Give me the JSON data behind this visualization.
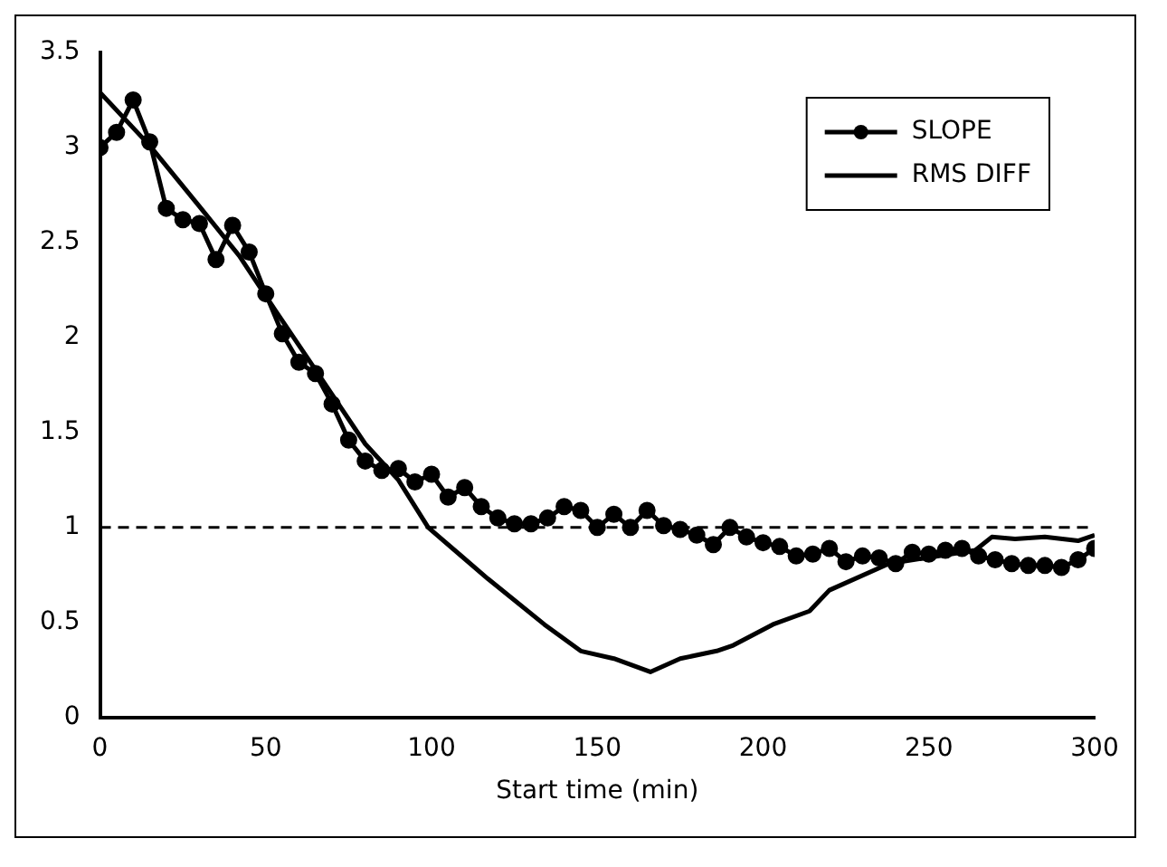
{
  "chart_data": {
    "type": "line",
    "xlabel": "Start time (min)",
    "xlim": [
      0,
      300
    ],
    "xticks": [
      0,
      50,
      100,
      150,
      200,
      250,
      300
    ],
    "ylim": [
      0,
      3.5
    ],
    "yticks": [
      0,
      0.5,
      1,
      1.5,
      2,
      2.5,
      3,
      3.5
    ],
    "grid": false,
    "legend": "top right",
    "series": [
      {
        "name": "SLOPE",
        "color": "#000000",
        "marker": "circle",
        "x": [
          0,
          5,
          10,
          15,
          20,
          25,
          30,
          35,
          40,
          45,
          50,
          55,
          60,
          65,
          70,
          75,
          80,
          85,
          90,
          95,
          100,
          105,
          110,
          115,
          120,
          125,
          130,
          135,
          140,
          145,
          150,
          155,
          160,
          165,
          170,
          175,
          180,
          185,
          190,
          195,
          200,
          205,
          210,
          215,
          220,
          225,
          230,
          235,
          240,
          245,
          250,
          255,
          260,
          265,
          270,
          275,
          280,
          285,
          290,
          295,
          300
        ],
        "values": [
          3.0,
          3.08,
          3.25,
          3.03,
          2.68,
          2.62,
          2.6,
          2.41,
          2.59,
          2.45,
          2.23,
          2.02,
          1.87,
          1.81,
          1.65,
          1.46,
          1.35,
          1.3,
          1.31,
          1.24,
          1.28,
          1.16,
          1.21,
          1.11,
          1.05,
          1.02,
          1.02,
          1.05,
          1.11,
          1.09,
          1.0,
          1.07,
          1.0,
          1.09,
          1.01,
          0.99,
          0.96,
          0.91,
          1.0,
          0.95,
          0.92,
          0.9,
          0.85,
          0.86,
          0.89,
          0.82,
          0.85,
          0.84,
          0.81,
          0.87,
          0.86,
          0.88,
          0.89,
          0.85,
          0.83,
          0.81,
          0.8,
          0.8,
          0.79,
          0.83,
          0.89
        ]
      },
      {
        "name": "RMS DIFF",
        "color": "#000000",
        "marker": "none",
        "x": [
          0,
          15,
          30,
          42,
          53,
          65,
          80,
          90,
          99,
          117,
          134,
          145,
          155,
          166,
          175,
          186,
          191,
          203,
          214,
          220,
          238,
          264,
          269,
          276,
          285,
          295,
          300
        ],
        "values": [
          3.29,
          3.01,
          2.69,
          2.43,
          2.14,
          1.83,
          1.44,
          1.25,
          1.0,
          0.73,
          0.49,
          0.35,
          0.31,
          0.24,
          0.31,
          0.35,
          0.38,
          0.49,
          0.56,
          0.67,
          0.81,
          0.88,
          0.95,
          0.94,
          0.95,
          0.93,
          0.96
        ]
      }
    ],
    "ref_lines": [
      {
        "axis": "y",
        "value": 1,
        "color": "#000000",
        "line_style": "dashed"
      }
    ]
  }
}
